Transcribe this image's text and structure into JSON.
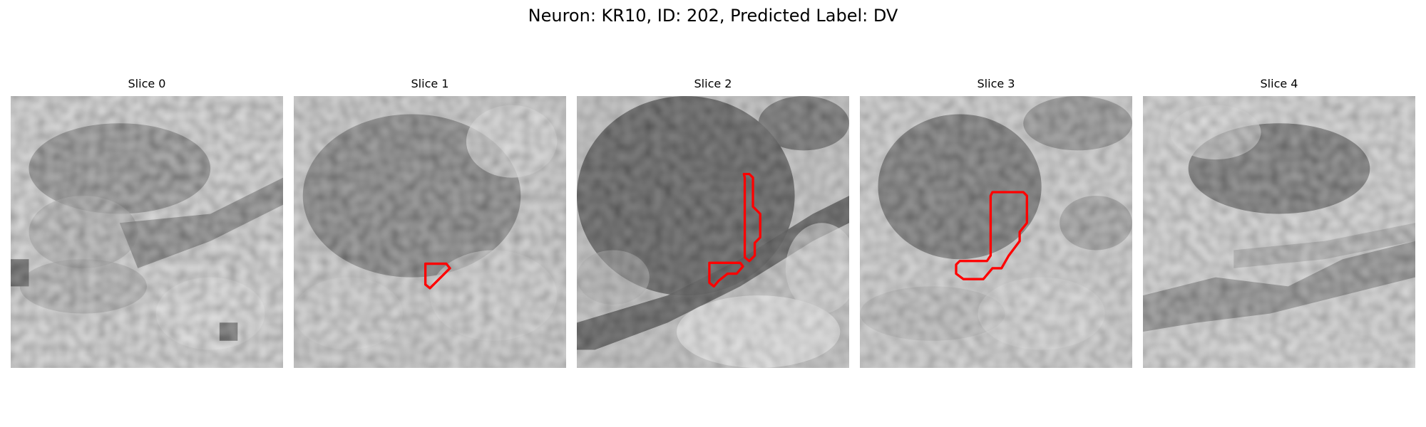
{
  "figure": {
    "title": "Neuron: KR10, ID: 202, Predicted Label: DV"
  },
  "panels": [
    {
      "title": "Slice 0",
      "has_contour": false
    },
    {
      "title": "Slice 1",
      "has_contour": true
    },
    {
      "title": "Slice 2",
      "has_contour": true
    },
    {
      "title": "Slice 3",
      "has_contour": true
    },
    {
      "title": "Slice 4",
      "has_contour": false
    }
  ],
  "colors": {
    "contour": "#ff0000",
    "background": "#ffffff"
  }
}
